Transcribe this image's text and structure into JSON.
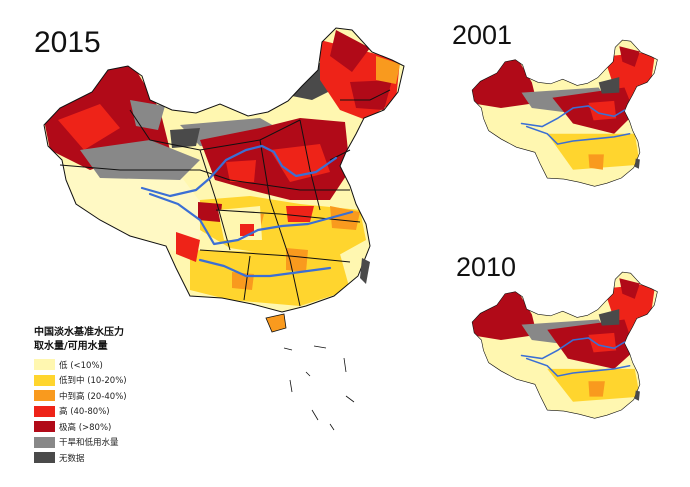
{
  "maps": [
    {
      "year": "2015"
    },
    {
      "year": "2001"
    },
    {
      "year": "2010"
    }
  ],
  "legend": {
    "title": "中国淡水基准水压力",
    "subtitle": "取水量/可用水量",
    "items": [
      {
        "label": "低 (<10%)",
        "color": "#fff7b0"
      },
      {
        "label": "低到中 (10-20%)",
        "color": "#ffd52e"
      },
      {
        "label": "中到高 (20-40%)",
        "color": "#f99a1e"
      },
      {
        "label": "高 (40-80%)",
        "color": "#ee2318"
      },
      {
        "label": "极高 (>80%)",
        "color": "#b10a18"
      },
      {
        "label": "干旱和低用水量",
        "color": "#888888"
      },
      {
        "label": "无数据",
        "color": "#4a4a4a"
      }
    ]
  },
  "river_color": "#3b6fd4"
}
